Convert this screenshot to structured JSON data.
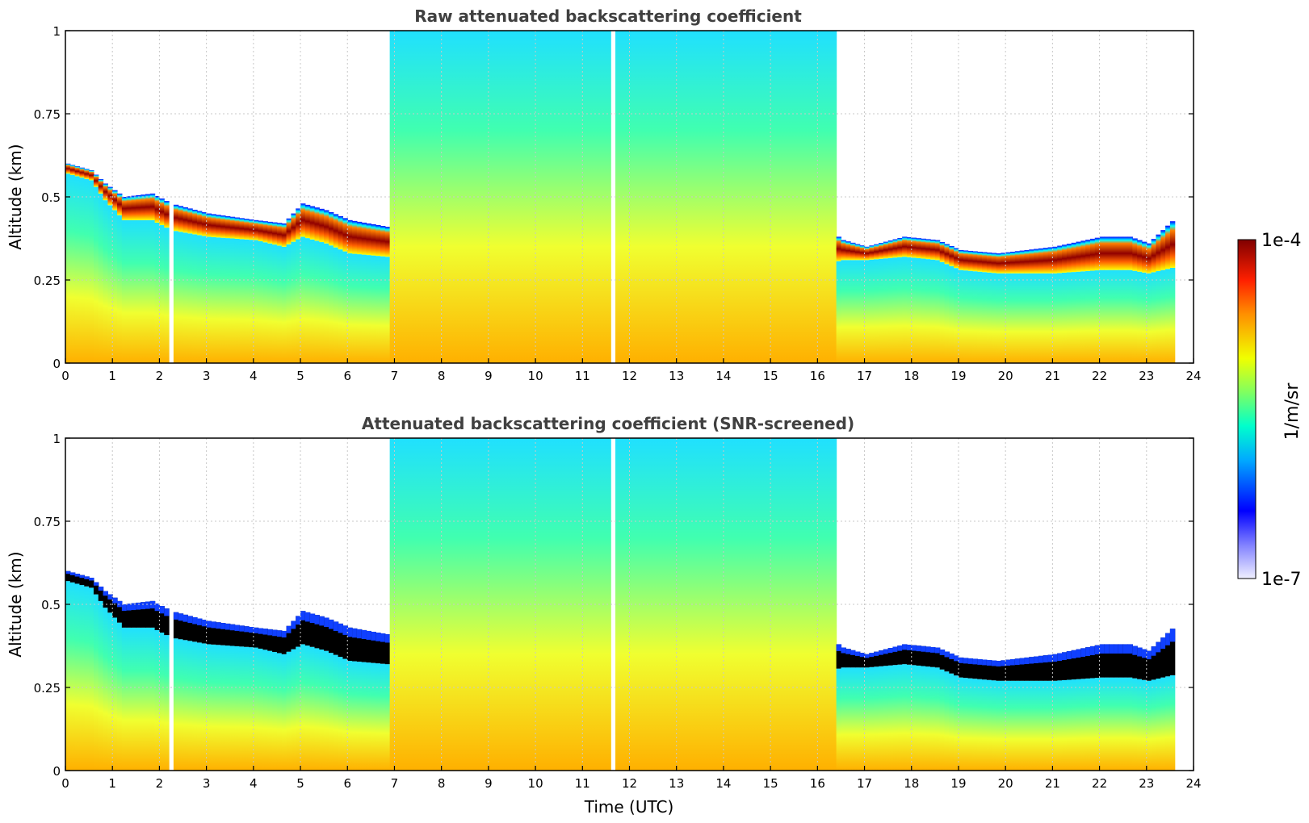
{
  "chart_data": [
    {
      "type": "heatmap",
      "title": "Raw attenuated backscattering coefficient",
      "xlabel": "",
      "ylabel": "Altitude (km)",
      "xlim": [
        0,
        24
      ],
      "ylim": [
        0,
        1
      ],
      "xticks": [
        "0",
        "1",
        "2",
        "3",
        "4",
        "5",
        "6",
        "7",
        "8",
        "9",
        "10",
        "11",
        "12",
        "13",
        "14",
        "15",
        "16",
        "17",
        "18",
        "19",
        "20",
        "21",
        "22",
        "23",
        "24"
      ],
      "yticks": [
        "0",
        "0.25",
        "0.5",
        "0.75",
        "1"
      ],
      "grid": true,
      "screened": false,
      "cloud_base_km": [
        [
          0,
          0.57
        ],
        [
          0.5,
          0.55
        ],
        [
          0.8,
          0.49
        ],
        [
          1.2,
          0.43
        ],
        [
          1.8,
          0.43
        ],
        [
          2.2,
          0.4
        ],
        [
          3,
          0.38
        ],
        [
          4,
          0.37
        ],
        [
          4.6,
          0.35
        ],
        [
          5,
          0.38
        ],
        [
          5.5,
          0.36
        ],
        [
          6,
          0.33
        ],
        [
          6.8,
          0.32
        ],
        [
          7,
          0.3
        ],
        [
          16.2,
          0.3
        ],
        [
          16.5,
          0.31
        ],
        [
          17,
          0.31
        ],
        [
          17.8,
          0.32
        ],
        [
          18.5,
          0.31
        ],
        [
          19,
          0.28
        ],
        [
          19.8,
          0.27
        ],
        [
          21,
          0.27
        ],
        [
          22,
          0.28
        ],
        [
          22.6,
          0.28
        ],
        [
          23,
          0.27
        ],
        [
          23.6,
          0.29
        ]
      ],
      "cloud_top_km": [
        [
          0,
          0.6
        ],
        [
          0.5,
          0.58
        ],
        [
          0.8,
          0.54
        ],
        [
          1.2,
          0.5
        ],
        [
          1.8,
          0.51
        ],
        [
          2.2,
          0.48
        ],
        [
          3,
          0.45
        ],
        [
          4,
          0.43
        ],
        [
          4.6,
          0.42
        ],
        [
          5,
          0.48
        ],
        [
          5.5,
          0.46
        ],
        [
          6,
          0.43
        ],
        [
          6.8,
          0.41
        ],
        [
          7,
          0.41
        ],
        [
          16.2,
          0.4
        ],
        [
          16.5,
          0.37
        ],
        [
          17,
          0.35
        ],
        [
          17.8,
          0.38
        ],
        [
          18.5,
          0.37
        ],
        [
          19,
          0.34
        ],
        [
          19.8,
          0.33
        ],
        [
          21,
          0.35
        ],
        [
          22,
          0.38
        ],
        [
          22.6,
          0.38
        ],
        [
          23,
          0.36
        ],
        [
          23.6,
          0.44
        ]
      ],
      "high_backscatter_time_ranges_utc": [
        [
          6.8,
          16.3
        ]
      ],
      "data_gaps_utc": [
        [
          2.15,
          2.25
        ],
        [
          11.55,
          11.65
        ]
      ]
    },
    {
      "type": "heatmap",
      "title": "Attenuated backscattering coefficient (SNR-screened)",
      "xlabel": "Time (UTC)",
      "ylabel": "Altitude (km)",
      "xlim": [
        0,
        24
      ],
      "ylim": [
        0,
        1
      ],
      "xticks": [
        "0",
        "1",
        "2",
        "3",
        "4",
        "5",
        "6",
        "7",
        "8",
        "9",
        "10",
        "11",
        "12",
        "13",
        "14",
        "15",
        "16",
        "17",
        "18",
        "19",
        "20",
        "21",
        "22",
        "23",
        "24"
      ],
      "yticks": [
        "0",
        "0.25",
        "0.5",
        "0.75",
        "1"
      ],
      "grid": true,
      "screened": true,
      "cloud_base_km": [
        [
          0,
          0.57
        ],
        [
          0.5,
          0.55
        ],
        [
          0.8,
          0.49
        ],
        [
          1.2,
          0.43
        ],
        [
          1.8,
          0.43
        ],
        [
          2.2,
          0.4
        ],
        [
          3,
          0.38
        ],
        [
          4,
          0.37
        ],
        [
          4.6,
          0.35
        ],
        [
          5,
          0.38
        ],
        [
          5.5,
          0.36
        ],
        [
          6,
          0.33
        ],
        [
          6.8,
          0.32
        ],
        [
          7,
          0.3
        ],
        [
          16.2,
          0.3
        ],
        [
          16.5,
          0.31
        ],
        [
          17,
          0.31
        ],
        [
          17.8,
          0.32
        ],
        [
          18.5,
          0.31
        ],
        [
          19,
          0.28
        ],
        [
          19.8,
          0.27
        ],
        [
          21,
          0.27
        ],
        [
          22,
          0.28
        ],
        [
          22.6,
          0.28
        ],
        [
          23,
          0.27
        ],
        [
          23.6,
          0.29
        ]
      ],
      "cloud_top_km": [
        [
          0,
          0.6
        ],
        [
          0.5,
          0.58
        ],
        [
          0.8,
          0.54
        ],
        [
          1.2,
          0.5
        ],
        [
          1.8,
          0.51
        ],
        [
          2.2,
          0.48
        ],
        [
          3,
          0.45
        ],
        [
          4,
          0.43
        ],
        [
          4.6,
          0.42
        ],
        [
          5,
          0.48
        ],
        [
          5.5,
          0.46
        ],
        [
          6,
          0.43
        ],
        [
          6.8,
          0.41
        ],
        [
          7,
          0.41
        ],
        [
          16.2,
          0.4
        ],
        [
          16.5,
          0.37
        ],
        [
          17,
          0.35
        ],
        [
          17.8,
          0.38
        ],
        [
          18.5,
          0.37
        ],
        [
          19,
          0.34
        ],
        [
          19.8,
          0.33
        ],
        [
          21,
          0.35
        ],
        [
          22,
          0.38
        ],
        [
          22.6,
          0.38
        ],
        [
          23,
          0.36
        ],
        [
          23.6,
          0.44
        ]
      ],
      "high_backscatter_time_ranges_utc": [
        [
          6.8,
          16.3
        ]
      ],
      "data_gaps_utc": [
        [
          2.15,
          2.25
        ],
        [
          11.55,
          11.65
        ]
      ]
    }
  ],
  "colorbar": {
    "label": "1/m/sr",
    "min_label": "1e-7",
    "max_label": "1e-4",
    "scale": "log",
    "range": [
      1e-07,
      0.0001
    ],
    "colormap": [
      "#ffffff",
      "#0000ff",
      "#00c8ff",
      "#00ffaa",
      "#f0ff00",
      "#ff8000",
      "#ff2000",
      "#800000"
    ]
  }
}
